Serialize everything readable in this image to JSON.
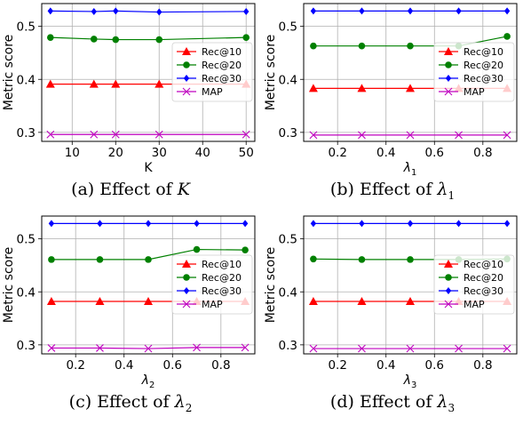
{
  "chart_data": [
    {
      "type": "line",
      "caption": {
        "tag": "(a)",
        "text": "Effect of",
        "symbol": "K",
        "sub": ""
      },
      "xlabel": {
        "main": "K",
        "sub": "",
        "italic": false
      },
      "ylabel": "Metric score",
      "x": [
        5,
        15,
        20,
        30,
        50
      ],
      "xlim": [
        3,
        52
      ],
      "ylim": [
        0.283,
        0.543
      ],
      "xticks": [
        10,
        20,
        30,
        40,
        50
      ],
      "yticks": [
        0.3,
        0.4,
        0.5
      ],
      "grid": true,
      "legend_position": "right",
      "series": [
        {
          "name": "Rec@10",
          "color": "#ff0000",
          "marker": "triangle",
          "values": [
            0.391,
            0.391,
            0.391,
            0.391,
            0.391
          ]
        },
        {
          "name": "Rec@20",
          "color": "#008000",
          "marker": "circle",
          "values": [
            0.479,
            0.476,
            0.475,
            0.475,
            0.479
          ]
        },
        {
          "name": "Rec@30",
          "color": "#0000ff",
          "marker": "diamond",
          "values": [
            0.529,
            0.528,
            0.529,
            0.527,
            0.528
          ]
        },
        {
          "name": "MAP",
          "color": "#bf00bf",
          "marker": "x",
          "values": [
            0.296,
            0.296,
            0.296,
            0.296,
            0.296
          ]
        }
      ]
    },
    {
      "type": "line",
      "caption": {
        "tag": "(b)",
        "text": "Effect of",
        "symbol": "λ",
        "sub": "1"
      },
      "xlabel": {
        "main": "λ",
        "sub": "1",
        "italic": true
      },
      "ylabel": "Metric score",
      "x": [
        0.1,
        0.3,
        0.5,
        0.7,
        0.9
      ],
      "xlim": [
        0.06,
        0.94
      ],
      "ylim": [
        0.283,
        0.543
      ],
      "xticks": [
        0.2,
        0.4,
        0.6,
        0.8
      ],
      "yticks": [
        0.3,
        0.4,
        0.5
      ],
      "grid": true,
      "legend_position": "right",
      "series": [
        {
          "name": "Rec@10",
          "color": "#ff0000",
          "marker": "triangle",
          "values": [
            0.383,
            0.383,
            0.383,
            0.383,
            0.383
          ]
        },
        {
          "name": "Rec@20",
          "color": "#008000",
          "marker": "circle",
          "values": [
            0.463,
            0.463,
            0.463,
            0.463,
            0.481
          ]
        },
        {
          "name": "Rec@30",
          "color": "#0000ff",
          "marker": "diamond",
          "values": [
            0.529,
            0.529,
            0.529,
            0.529,
            0.529
          ]
        },
        {
          "name": "MAP",
          "color": "#bf00bf",
          "marker": "x",
          "values": [
            0.295,
            0.295,
            0.295,
            0.295,
            0.295
          ]
        }
      ]
    },
    {
      "type": "line",
      "caption": {
        "tag": "(c)",
        "text": "Effect of",
        "symbol": "λ",
        "sub": "2"
      },
      "xlabel": {
        "main": "λ",
        "sub": "2",
        "italic": true
      },
      "ylabel": "Metric score",
      "x": [
        0.1,
        0.3,
        0.5,
        0.7,
        0.9
      ],
      "xlim": [
        0.06,
        0.94
      ],
      "ylim": [
        0.283,
        0.543
      ],
      "xticks": [
        0.2,
        0.4,
        0.6,
        0.8
      ],
      "yticks": [
        0.3,
        0.4,
        0.5
      ],
      "grid": true,
      "legend_position": "right",
      "series": [
        {
          "name": "Rec@10",
          "color": "#ff0000",
          "marker": "triangle",
          "values": [
            0.382,
            0.382,
            0.382,
            0.382,
            0.382
          ]
        },
        {
          "name": "Rec@20",
          "color": "#008000",
          "marker": "circle",
          "values": [
            0.461,
            0.461,
            0.461,
            0.48,
            0.479
          ]
        },
        {
          "name": "Rec@30",
          "color": "#0000ff",
          "marker": "diamond",
          "values": [
            0.529,
            0.529,
            0.529,
            0.529,
            0.529
          ]
        },
        {
          "name": "MAP",
          "color": "#bf00bf",
          "marker": "x",
          "values": [
            0.294,
            0.294,
            0.293,
            0.295,
            0.295
          ]
        }
      ]
    },
    {
      "type": "line",
      "caption": {
        "tag": "(d)",
        "text": "Effect of",
        "symbol": "λ",
        "sub": "3"
      },
      "xlabel": {
        "main": "λ",
        "sub": "3",
        "italic": true
      },
      "ylabel": "Metric score",
      "x": [
        0.1,
        0.3,
        0.5,
        0.7,
        0.9
      ],
      "xlim": [
        0.06,
        0.94
      ],
      "ylim": [
        0.283,
        0.543
      ],
      "xticks": [
        0.2,
        0.4,
        0.6,
        0.8
      ],
      "yticks": [
        0.3,
        0.4,
        0.5
      ],
      "grid": true,
      "legend_position": "right",
      "series": [
        {
          "name": "Rec@10",
          "color": "#ff0000",
          "marker": "triangle",
          "values": [
            0.382,
            0.382,
            0.382,
            0.382,
            0.382
          ]
        },
        {
          "name": "Rec@20",
          "color": "#008000",
          "marker": "circle",
          "values": [
            0.462,
            0.461,
            0.461,
            0.461,
            0.462
          ]
        },
        {
          "name": "Rec@30",
          "color": "#0000ff",
          "marker": "diamond",
          "values": [
            0.529,
            0.529,
            0.529,
            0.529,
            0.529
          ]
        },
        {
          "name": "MAP",
          "color": "#bf00bf",
          "marker": "x",
          "values": [
            0.293,
            0.293,
            0.293,
            0.293,
            0.293
          ]
        }
      ]
    }
  ]
}
